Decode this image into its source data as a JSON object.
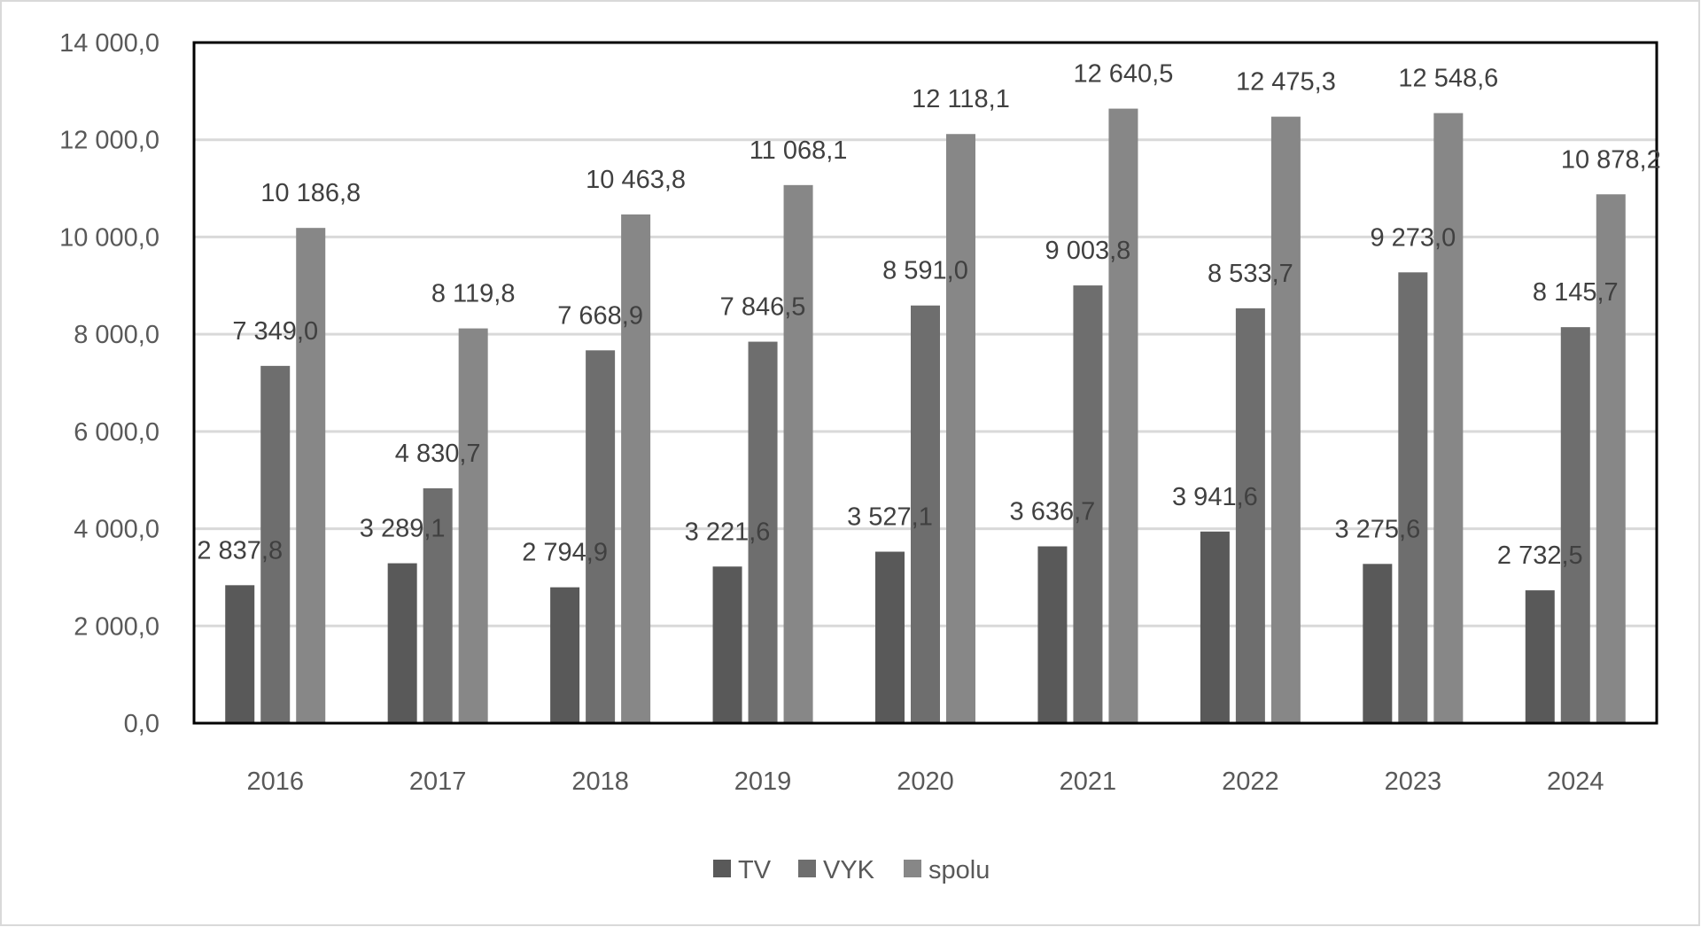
{
  "chart_data": {
    "type": "bar",
    "title": "",
    "xlabel": "",
    "ylabel": "",
    "categories": [
      "2016",
      "2017",
      "2018",
      "2019",
      "2020",
      "2021",
      "2022",
      "2023",
      "2024"
    ],
    "series": [
      {
        "name": "TV",
        "color": "#595959",
        "values": [
          2837.8,
          3289.1,
          2794.9,
          3221.6,
          3527.1,
          3636.7,
          3941.6,
          3275.6,
          2732.5
        ],
        "labels": [
          "2 837,8",
          "3 289,1",
          "2 794,9",
          "3 221,6",
          "3 527,1",
          "3 636,7",
          "3 941,6",
          "3 275,6",
          "2 732,5"
        ]
      },
      {
        "name": "VYK",
        "color": "#6e6e6e",
        "values": [
          7349.0,
          4830.7,
          7668.9,
          7846.5,
          8591.0,
          9003.8,
          8533.7,
          9273.0,
          8145.7
        ],
        "labels": [
          "7 349,0",
          "4 830,7",
          "7 668,9",
          "7 846,5",
          "8 591,0",
          "9 003,8",
          "8 533,7",
          "9 273,0",
          "8 145,7"
        ]
      },
      {
        "name": "spolu",
        "color": "#878787",
        "values": [
          10186.8,
          8119.8,
          10463.8,
          11068.1,
          12118.1,
          12640.5,
          12475.3,
          12548.6,
          10878.2
        ],
        "labels": [
          "10 186,8",
          "8 119,8",
          "10 463,8",
          "11 068,1",
          "12 118,1",
          "12 640,5",
          "12 475,3",
          "12 548,6",
          "10 878,2"
        ]
      }
    ],
    "ylim": [
      0,
      14000
    ],
    "yticks": [
      0,
      2000,
      4000,
      6000,
      8000,
      10000,
      12000,
      14000
    ],
    "ytick_labels": [
      "0,0",
      "2 000,0",
      "4 000,0",
      "6 000,0",
      "8 000,0",
      "10 000,0",
      "12 000,0",
      "14 000,0"
    ],
    "grid": true,
    "legend": "bottom-center"
  }
}
